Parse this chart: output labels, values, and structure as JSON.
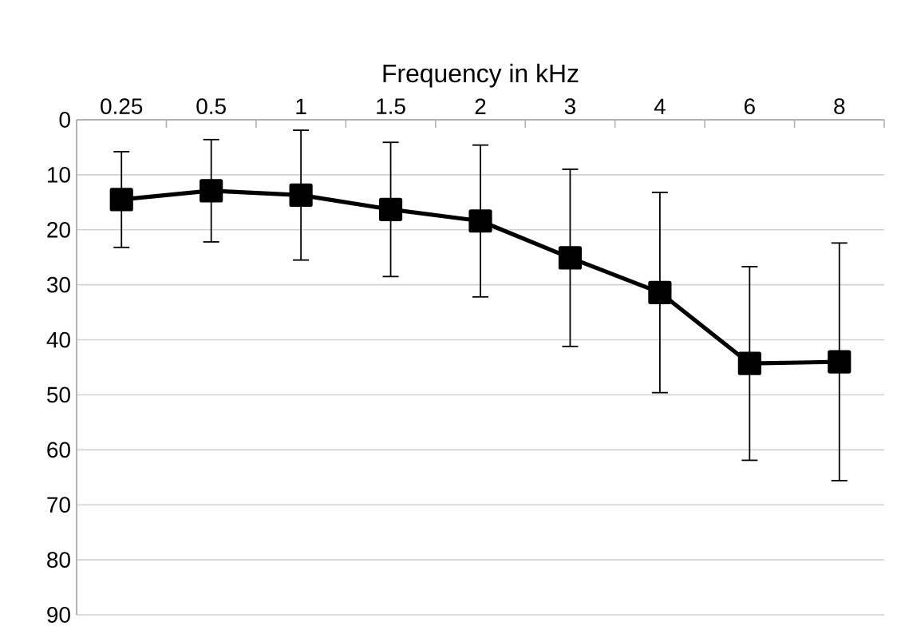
{
  "chart_data": {
    "type": "line",
    "xlabel": "Frequency in kHz",
    "categories": [
      "0.25",
      "0.5",
      "1",
      "1.5",
      "2",
      "3",
      "4",
      "6",
      "8"
    ],
    "series": [
      {
        "color": "#000000",
        "values": [
          14.5,
          12.9,
          13.7,
          16.3,
          18.4,
          25.1,
          31.4,
          44.3,
          44.0
        ],
        "errors": [
          8.7,
          9.3,
          11.8,
          12.2,
          13.8,
          16.1,
          18.2,
          17.6,
          21.6
        ]
      }
    ],
    "ylim": [
      90,
      0
    ],
    "yticks": [
      0,
      10,
      20,
      30,
      40,
      50,
      60,
      70,
      80,
      90
    ],
    "grid": "y",
    "marker": "square",
    "line_style": "solid"
  }
}
